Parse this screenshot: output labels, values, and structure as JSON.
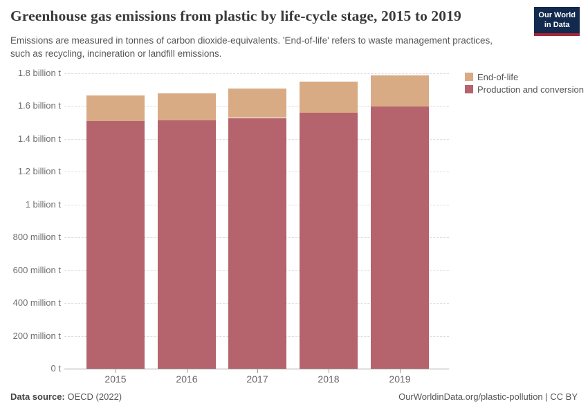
{
  "header": {
    "title": "Greenhouse gas emissions from plastic by life-cycle stage, 2015 to 2019",
    "subtitle": "Emissions are measured in tonnes of carbon dioxide-equivalents. 'End-of-life' refers to waste management practices, such as recycling, incineration or landfill emissions."
  },
  "logo": {
    "line1": "Our World",
    "line2": "in Data",
    "bg_color": "#122a4e",
    "stripe_color": "#a52639"
  },
  "chart_data": {
    "type": "bar",
    "stacked": true,
    "title": "Greenhouse gas emissions from plastic by life-cycle stage, 2015 to 2019",
    "unit": "million tonnes of CO2-equivalents",
    "categories": [
      "2015",
      "2016",
      "2017",
      "2018",
      "2019"
    ],
    "series": [
      {
        "name": "End-of-life",
        "color": "#d8ab85",
        "values": [
          156,
          168,
          178,
          190,
          190
        ]
      },
      {
        "name": "Production and conversion",
        "color": "#b5636d",
        "values": [
          1508,
          1512,
          1528,
          1560,
          1598
        ]
      }
    ],
    "stack_order_bottom_to_top": [
      "Production and conversion",
      "End-of-life"
    ],
    "totals": [
      1664,
      1680,
      1706,
      1750,
      1788
    ],
    "ylim": [
      0,
      1800
    ],
    "yticks": [
      {
        "value": 0,
        "label": "0 t"
      },
      {
        "value": 200,
        "label": "200 million t"
      },
      {
        "value": 400,
        "label": "400 million t"
      },
      {
        "value": 600,
        "label": "600 million t"
      },
      {
        "value": 800,
        "label": "800 million t"
      },
      {
        "value": 1000,
        "label": "1 billion t"
      },
      {
        "value": 1200,
        "label": "1.2 billion t"
      },
      {
        "value": 1400,
        "label": "1.4 billion t"
      },
      {
        "value": 1600,
        "label": "1.6 billion t"
      },
      {
        "value": 1800,
        "label": "1.8 billion t"
      }
    ],
    "grid": "horizontal dashed",
    "legend_position": "top-right"
  },
  "footer": {
    "datasource_label": "Data source:",
    "datasource_value": "OECD (2022)",
    "credit": "OurWorldinData.org/plastic-pollution | CC BY"
  }
}
